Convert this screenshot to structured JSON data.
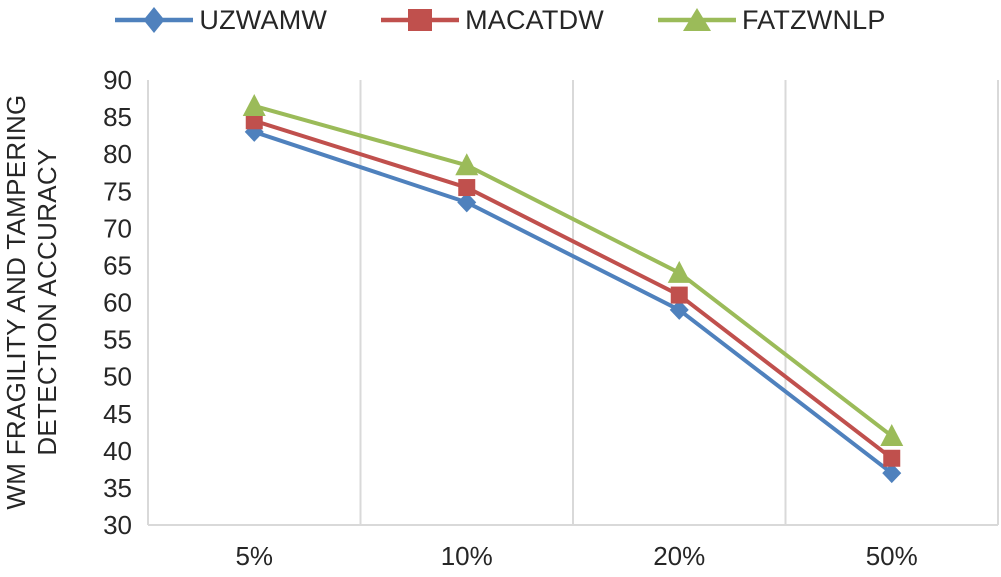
{
  "chart_data": {
    "type": "line",
    "title": "",
    "categories": [
      "5%",
      "10%",
      "20%",
      "50%"
    ],
    "series": [
      {
        "name": "UZWAMW",
        "color": "#4F81BD",
        "marker": "diamond",
        "values": [
          83,
          73.5,
          59,
          37
        ]
      },
      {
        "name": "MACATDW",
        "color": "#C0504D",
        "marker": "square",
        "values": [
          84.5,
          75.5,
          61,
          39
        ]
      },
      {
        "name": "FATZWNLP",
        "color": "#9BBB59",
        "marker": "triangle",
        "values": [
          86.5,
          78.5,
          64,
          42
        ]
      }
    ],
    "xlabel": "",
    "ylabel_line1": "WM FRAGILITY AND TAMPERING",
    "ylabel_line2": "DETECTION ACCURACY",
    "ylim": [
      30,
      90
    ],
    "ytick_step": 5,
    "ytick_labels": [
      "90",
      "85",
      "80",
      "75",
      "70",
      "65",
      "60",
      "55",
      "50",
      "45",
      "40",
      "35",
      "30"
    ],
    "xtick_labels": [
      "5%",
      "10%",
      "20%",
      "50%"
    ],
    "grid": "vertical-only",
    "legend_position": "top",
    "axis_text_color": "#262626",
    "gridline_color": "#D9D9D9"
  }
}
